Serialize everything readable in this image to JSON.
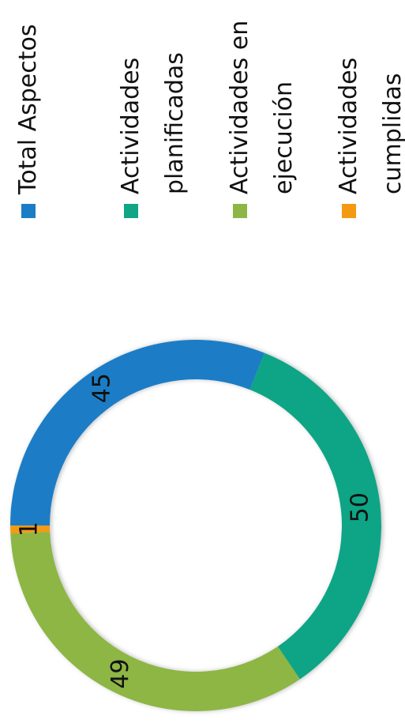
{
  "chart_data": {
    "type": "donut",
    "series": [
      {
        "name": "Total Aspectos",
        "color": "#1b7dc6",
        "values": [
          45
        ]
      },
      {
        "name": "Actividades planificadas",
        "color": "#10a585",
        "values": [
          50
        ]
      },
      {
        "name": "Actividades en ejecución",
        "color": "#8db645",
        "values": [
          49
        ]
      },
      {
        "name": "Actividades cumplidas",
        "color": "#f39a12",
        "values": [
          1
        ]
      }
    ],
    "legend": "right"
  }
}
